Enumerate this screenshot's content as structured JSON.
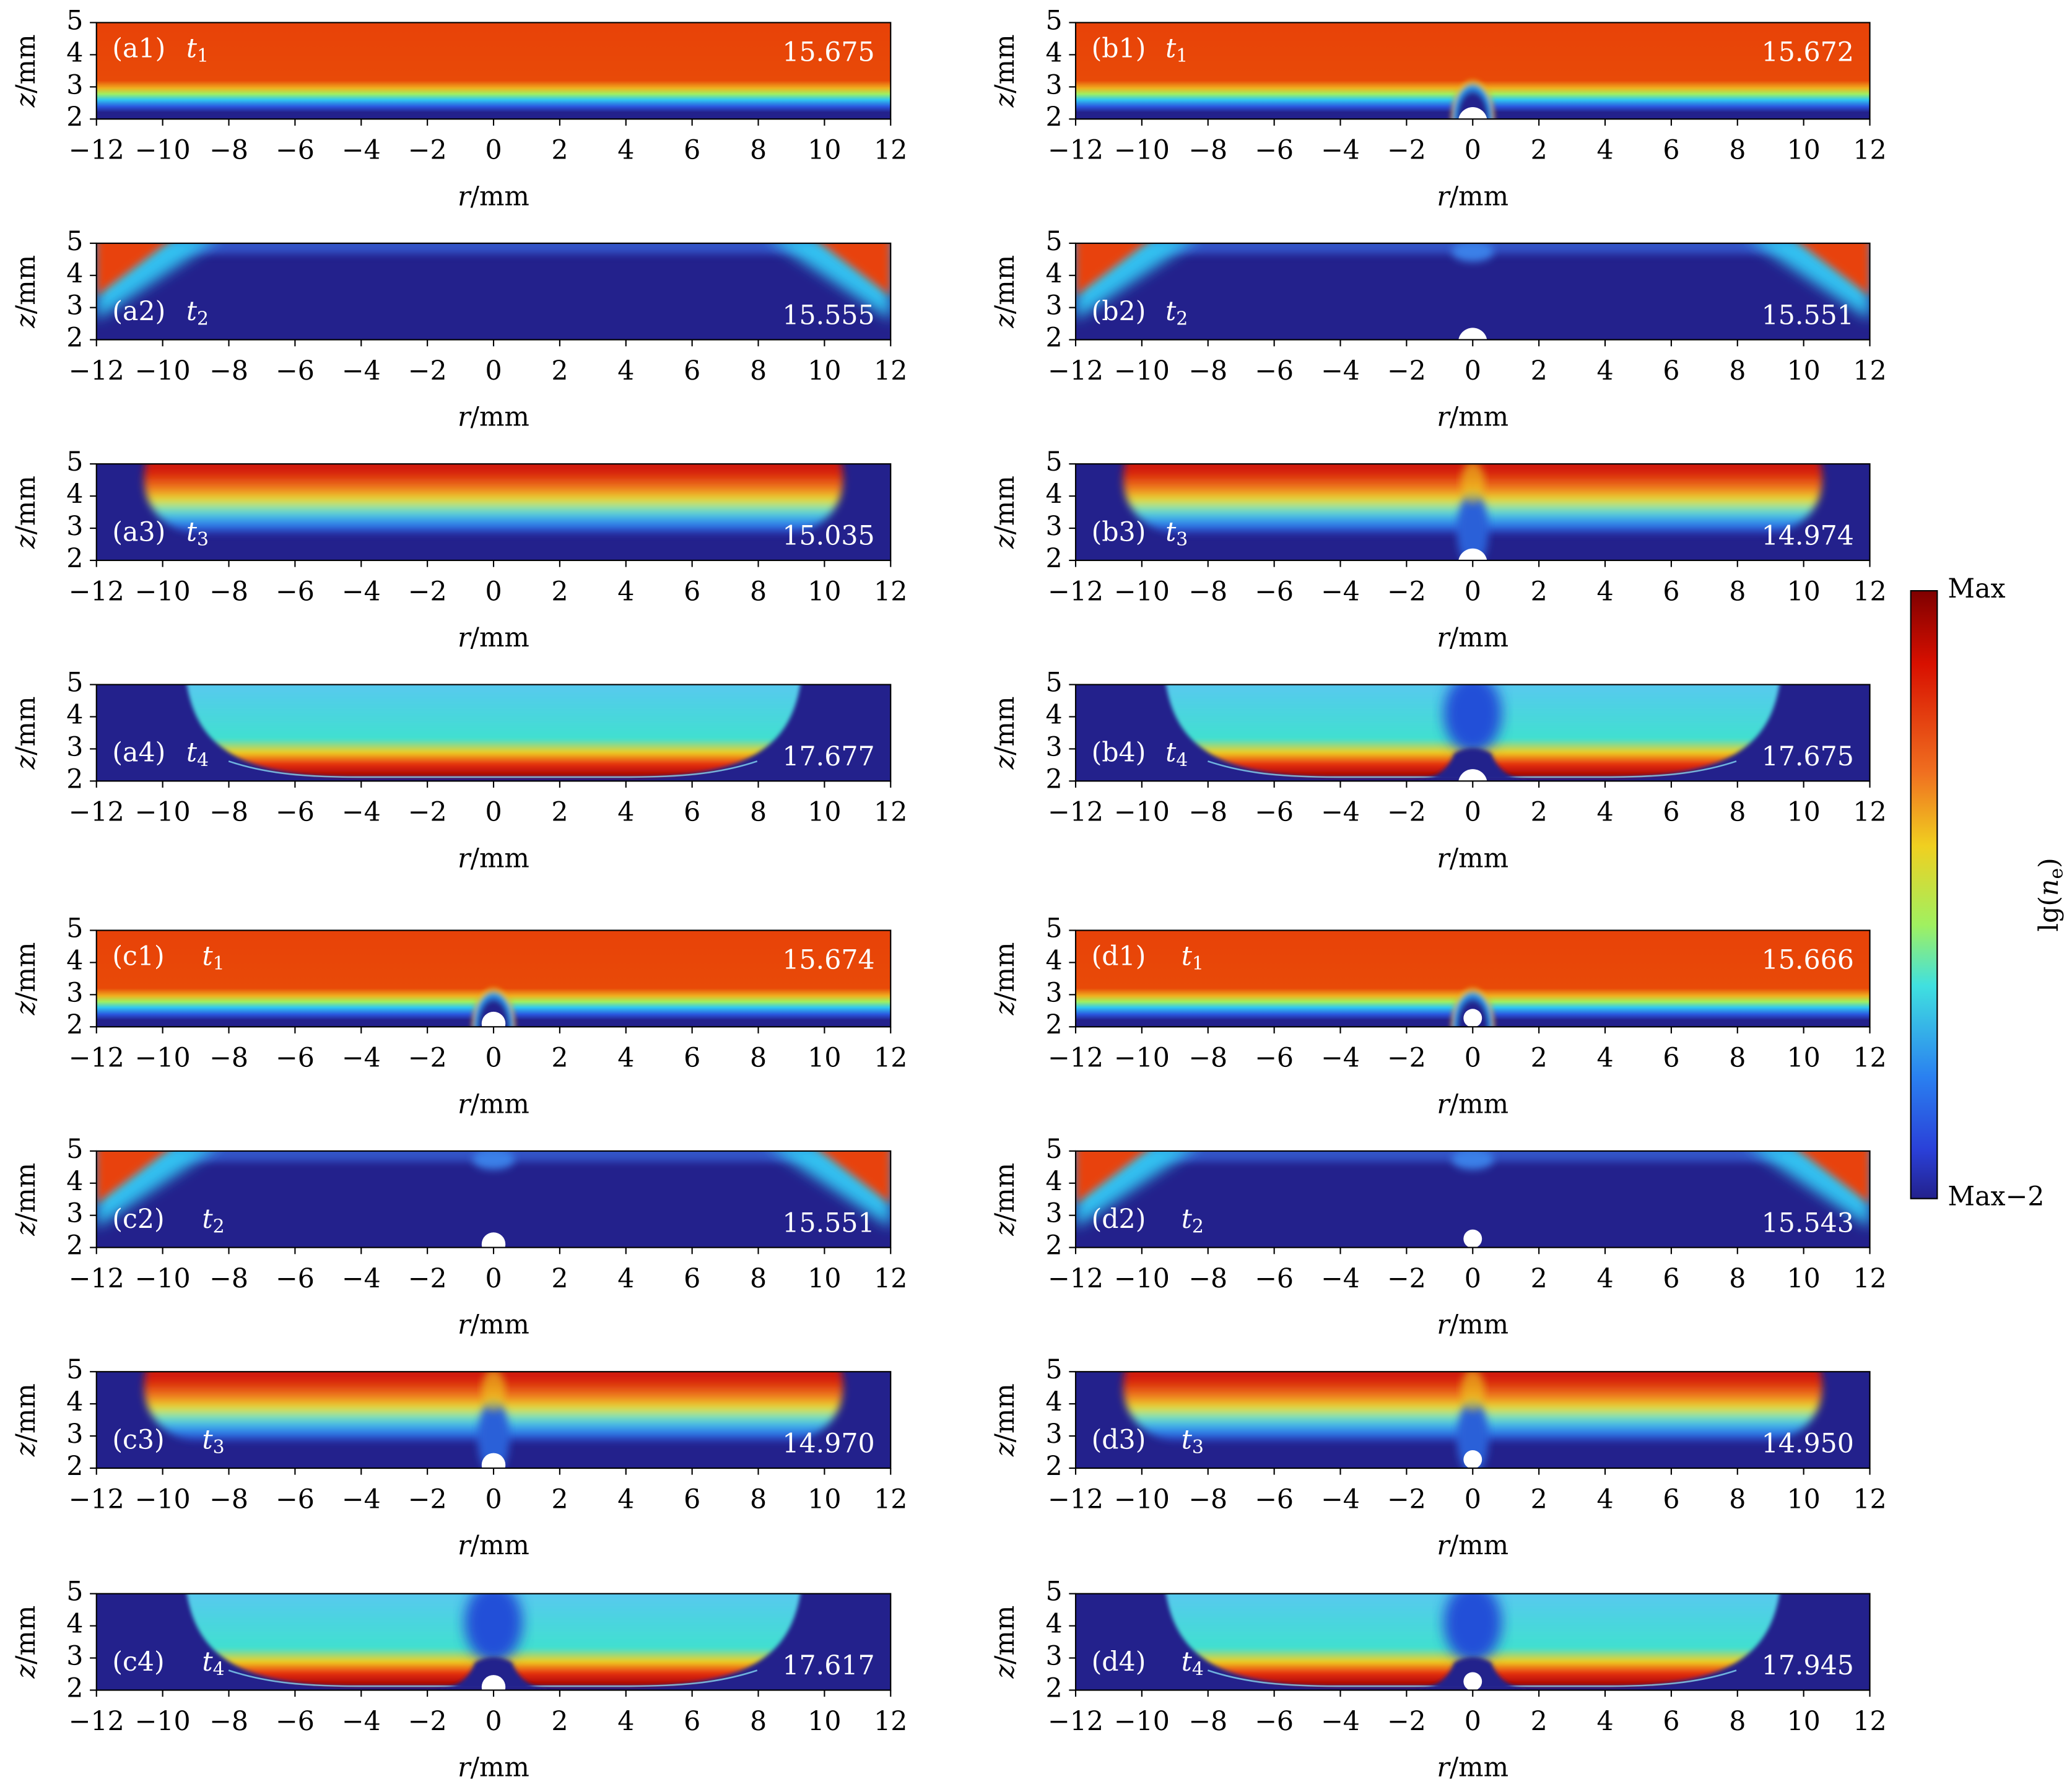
{
  "axes": {
    "xlabel": {
      "symbol": "r",
      "unit": "/mm"
    },
    "ylabel": {
      "symbol": "z",
      "unit": "/mm"
    },
    "xlim": [
      -12,
      12
    ],
    "ylim": [
      2,
      5
    ],
    "xticks": [
      {
        "value": -12,
        "label": "−12"
      },
      {
        "value": -10,
        "label": "−10"
      },
      {
        "value": -8,
        "label": "−8"
      },
      {
        "value": -6,
        "label": "−6"
      },
      {
        "value": -4,
        "label": "−4"
      },
      {
        "value": -2,
        "label": "−2"
      },
      0,
      2,
      4,
      6,
      8,
      10,
      12
    ],
    "yticks": [
      2,
      3,
      4,
      5
    ]
  },
  "colorbar": {
    "max_label": "Max",
    "min_label": "Max−2",
    "label": {
      "prefix": "lg(",
      "symbol": "n",
      "sub": "e",
      "suffix": ")"
    }
  },
  "chart_data": [
    {
      "type": "heatmap",
      "panel": "(a1)",
      "time": {
        "symbol": "t",
        "index": "1"
      },
      "annotation": "15.675"
    },
    {
      "type": "heatmap",
      "panel": "(a2)",
      "time": {
        "symbol": "t",
        "index": "2"
      },
      "annotation": "15.555"
    },
    {
      "type": "heatmap",
      "panel": "(a3)",
      "time": {
        "symbol": "t",
        "index": "3"
      },
      "annotation": "15.035"
    },
    {
      "type": "heatmap",
      "panel": "(a4)",
      "time": {
        "symbol": "t",
        "index": "4"
      },
      "annotation": "17.677"
    },
    {
      "type": "heatmap",
      "panel": "(b1)",
      "time": {
        "symbol": "t",
        "index": "1"
      },
      "annotation": "15.672"
    },
    {
      "type": "heatmap",
      "panel": "(b2)",
      "time": {
        "symbol": "t",
        "index": "2"
      },
      "annotation": "15.551"
    },
    {
      "type": "heatmap",
      "panel": "(b3)",
      "time": {
        "symbol": "t",
        "index": "3"
      },
      "annotation": "14.974"
    },
    {
      "type": "heatmap",
      "panel": "(b4)",
      "time": {
        "symbol": "t",
        "index": "4"
      },
      "annotation": "17.675"
    },
    {
      "type": "heatmap",
      "panel": "(c1)",
      "time": {
        "symbol": "t",
        "index": "1"
      },
      "annotation": "15.674"
    },
    {
      "type": "heatmap",
      "panel": "(c2)",
      "time": {
        "symbol": "t",
        "index": "2"
      },
      "annotation": "15.551"
    },
    {
      "type": "heatmap",
      "panel": "(c3)",
      "time": {
        "symbol": "t",
        "index": "3"
      },
      "annotation": "14.970"
    },
    {
      "type": "heatmap",
      "panel": "(c4)",
      "time": {
        "symbol": "t",
        "index": "4"
      },
      "annotation": "17.617"
    },
    {
      "type": "heatmap",
      "panel": "(d1)",
      "time": {
        "symbol": "t",
        "index": "1"
      },
      "annotation": "15.666"
    },
    {
      "type": "heatmap",
      "panel": "(d2)",
      "time": {
        "symbol": "t",
        "index": "2"
      },
      "annotation": "15.543"
    },
    {
      "type": "heatmap",
      "panel": "(d3)",
      "time": {
        "symbol": "t",
        "index": "3"
      },
      "annotation": "14.950"
    },
    {
      "type": "heatmap",
      "panel": "(d4)",
      "time": {
        "symbol": "t",
        "index": "4"
      },
      "annotation": "17.945"
    }
  ]
}
